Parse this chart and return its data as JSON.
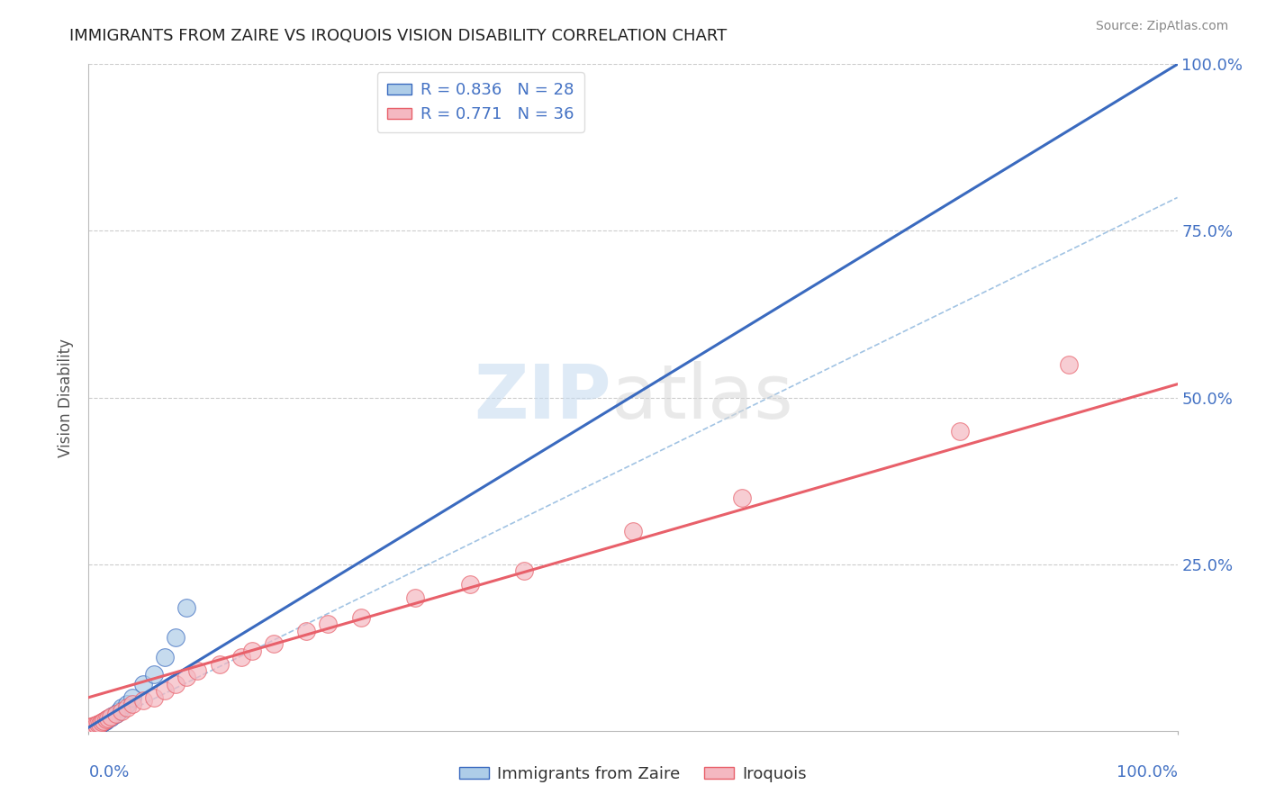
{
  "title": "IMMIGRANTS FROM ZAIRE VS IROQUOIS VISION DISABILITY CORRELATION CHART",
  "source": "Source: ZipAtlas.com",
  "ylabel": "Vision Disability",
  "legend_blue_r": "R = 0.836",
  "legend_blue_n": "N = 28",
  "legend_pink_r": "R = 0.771",
  "legend_pink_n": "N = 36",
  "blue_color": "#aecde8",
  "pink_color": "#f4b8c1",
  "blue_line_color": "#3a6abf",
  "pink_line_color": "#e8606a",
  "blue_dash_color": "#7aaad8",
  "grid_color": "#cccccc",
  "blue_scatter_x": [
    0.1,
    0.2,
    0.3,
    0.4,
    0.5,
    0.6,
    0.7,
    0.8,
    0.9,
    1.0,
    1.1,
    1.2,
    1.4,
    1.5,
    1.6,
    1.8,
    2.0,
    2.2,
    2.5,
    2.8,
    3.0,
    3.5,
    4.0,
    5.0,
    6.0,
    7.0,
    8.0,
    9.0
  ],
  "blue_scatter_y": [
    0.2,
    0.3,
    0.4,
    0.5,
    0.5,
    0.6,
    0.7,
    0.8,
    0.9,
    1.0,
    1.1,
    1.2,
    1.3,
    1.5,
    1.6,
    1.8,
    2.0,
    2.2,
    2.5,
    3.0,
    3.5,
    4.0,
    5.0,
    7.0,
    8.5,
    11.0,
    14.0,
    18.5
  ],
  "pink_scatter_x": [
    0.1,
    0.2,
    0.3,
    0.5,
    0.7,
    0.9,
    1.0,
    1.2,
    1.4,
    1.6,
    1.8,
    2.0,
    2.5,
    3.0,
    3.5,
    4.0,
    5.0,
    6.0,
    7.0,
    8.0,
    9.0,
    10.0,
    12.0,
    14.0,
    15.0,
    17.0,
    20.0,
    22.0,
    25.0,
    30.0,
    35.0,
    40.0,
    50.0,
    60.0,
    80.0,
    90.0
  ],
  "pink_scatter_y": [
    0.5,
    0.6,
    0.7,
    0.8,
    0.9,
    1.0,
    1.1,
    1.3,
    1.5,
    1.7,
    1.9,
    2.1,
    2.5,
    3.0,
    3.5,
    4.0,
    4.5,
    5.0,
    6.0,
    7.0,
    8.0,
    9.0,
    10.0,
    11.0,
    12.0,
    13.0,
    15.0,
    16.0,
    17.0,
    20.0,
    22.0,
    24.0,
    30.0,
    35.0,
    45.0,
    55.0
  ],
  "blue_reg_x0": 0,
  "blue_reg_y0": 0.5,
  "blue_reg_x1": 100,
  "blue_reg_y1": 100,
  "pink_reg_x0": 0,
  "pink_reg_y0": 5.0,
  "pink_reg_x1": 100,
  "pink_reg_y1": 52.0,
  "dash_x0": 0,
  "dash_y0": 0,
  "dash_x1": 100,
  "dash_y1": 80,
  "xlim": [
    0,
    100
  ],
  "ylim": [
    0,
    100
  ],
  "ytick_values": [
    25,
    50,
    75,
    100
  ],
  "background_color": "#ffffff",
  "label_color": "#4472c4",
  "title_fontsize": 13,
  "axis_label_fontsize": 12,
  "tick_fontsize": 13
}
